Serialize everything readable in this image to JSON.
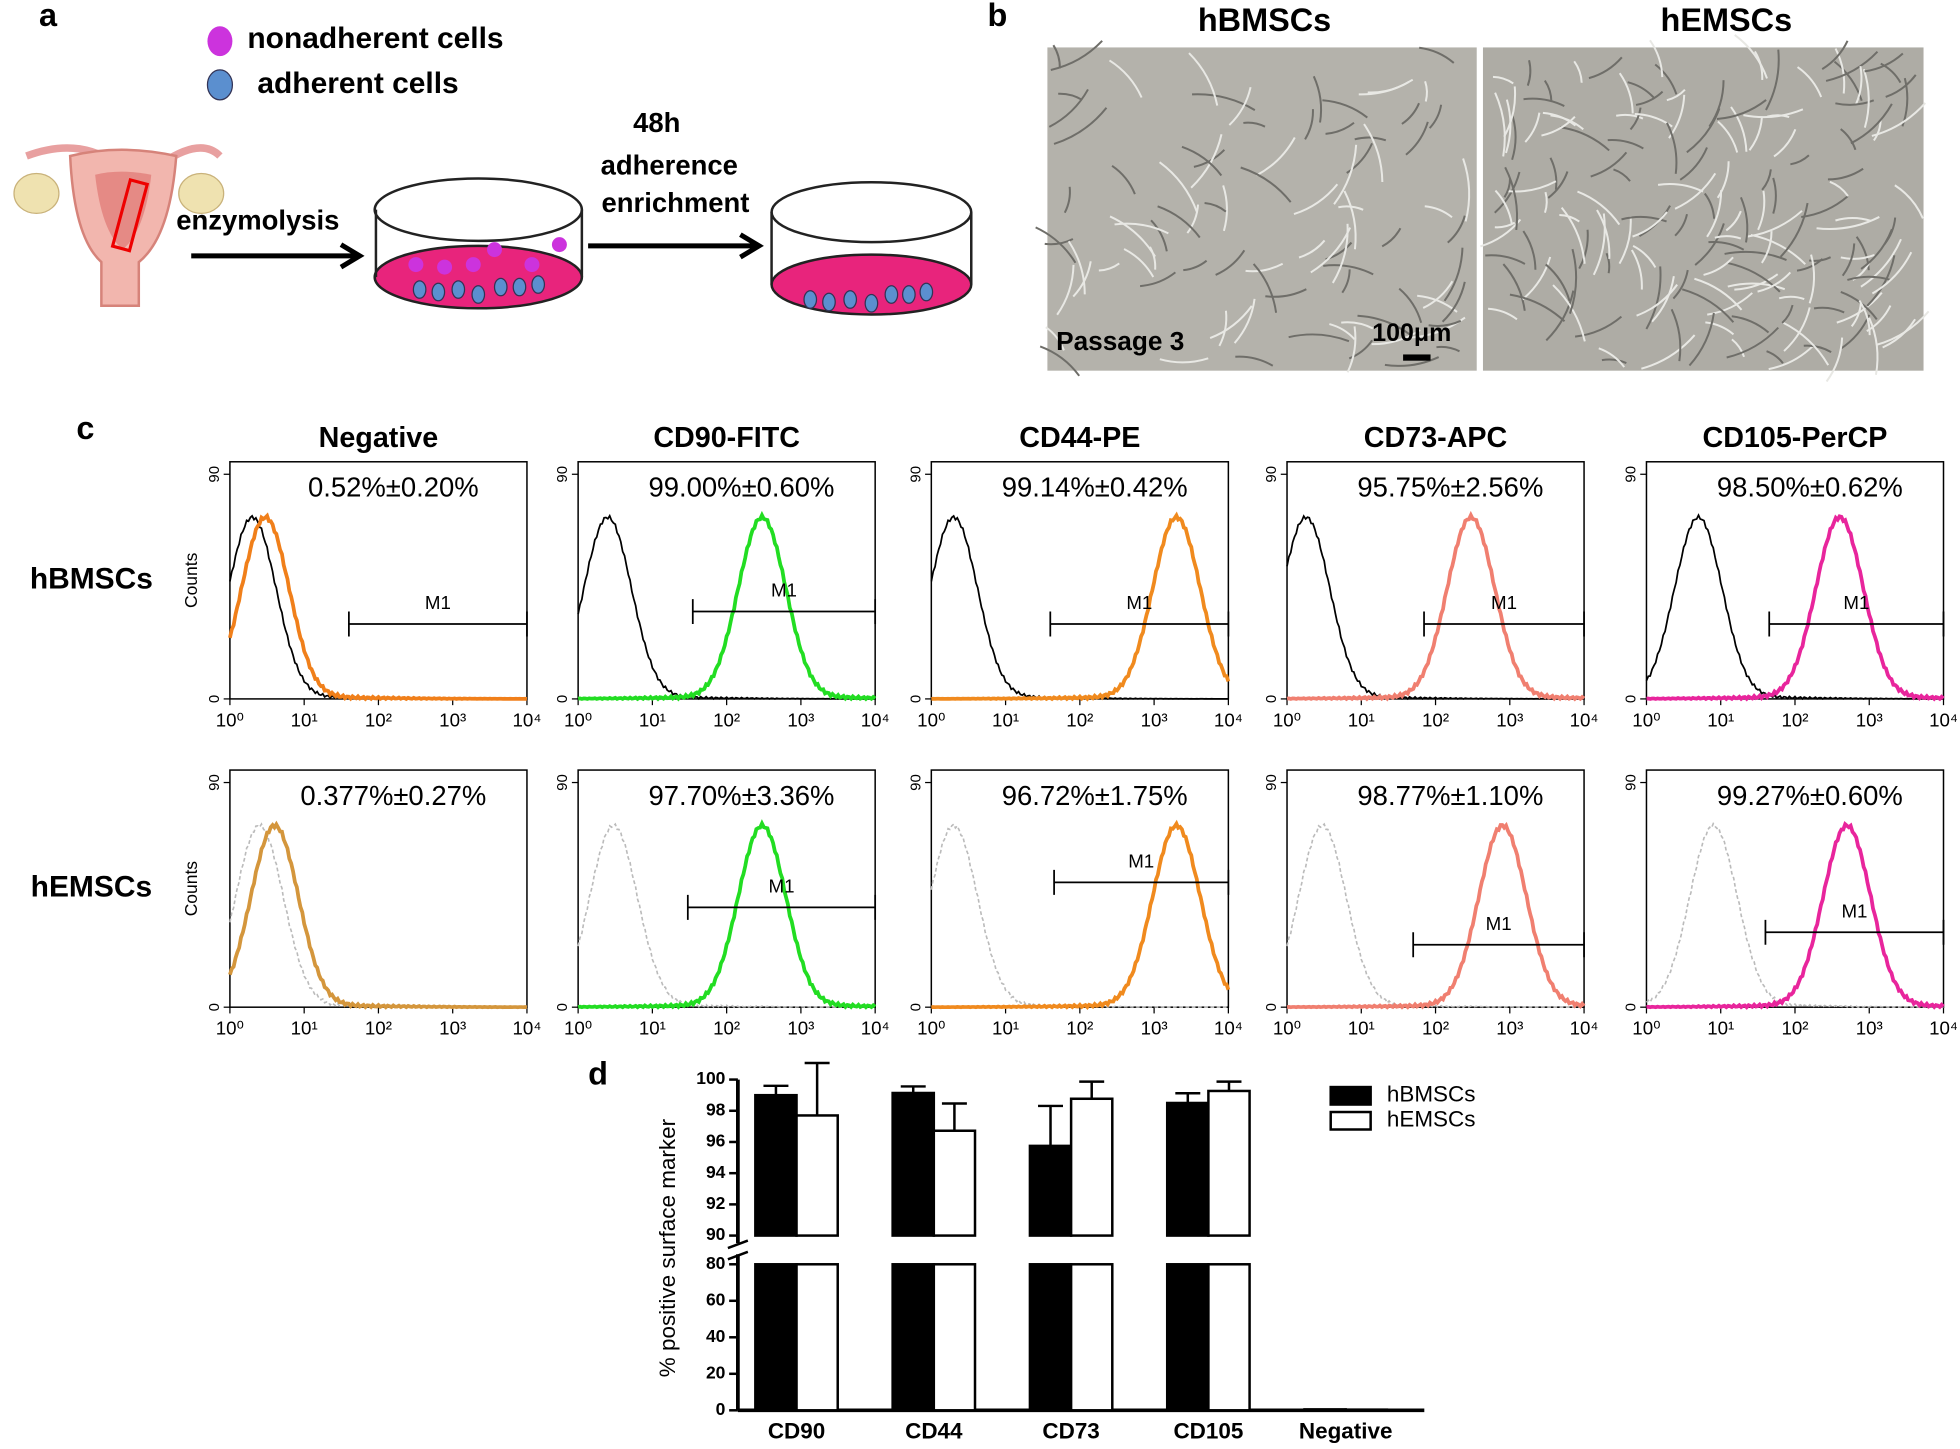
{
  "panel_a": {
    "label": "a",
    "legend": [
      "nonadherent cells",
      "adherent cells"
    ],
    "step1": "enzymolysis",
    "step2": [
      "48h",
      "adherence",
      "enrichment"
    ]
  },
  "panel_b": {
    "label": "b",
    "images": [
      {
        "title": "hBMSCs"
      },
      {
        "title": "hEMSCs"
      }
    ],
    "passage": "Passage 3",
    "scale_bar": "100μm"
  },
  "panel_c": {
    "label": "c",
    "xscale": "log",
    "xlim": [
      1,
      10000
    ],
    "xticks": [
      {
        "value": 1,
        "label": "10⁰"
      },
      {
        "value": 10,
        "label": "10¹"
      },
      {
        "value": 100,
        "label": "10²"
      },
      {
        "value": 1000,
        "label": "10³"
      },
      {
        "value": 10000,
        "label": "10⁴"
      }
    ],
    "ylim": [
      0,
      90
    ],
    "yticks": [
      0,
      90
    ],
    "ylabel": "Counts",
    "gate_label": "M1",
    "columns": [
      "Negative",
      "CD90-FITC",
      "CD44-PE",
      "CD73-APC",
      "CD105-PerCP"
    ],
    "rows": [
      {
        "name": "hBMSCs",
        "control_style": "solid",
        "panels": [
          {
            "stat": "0.52%±0.20%",
            "control_peak": 2,
            "sample_peak": 3,
            "color": "#f07f1a",
            "gate": [
              40,
              10000
            ],
            "gate_level": 30
          },
          {
            "stat": "99.00%±0.60%",
            "control_peak": 2.5,
            "sample_peak": 300,
            "color": "#22dd22",
            "gate": [
              35,
              10000
            ],
            "gate_level": 35
          },
          {
            "stat": "99.14%±0.42%",
            "control_peak": 2,
            "sample_peak": 2000,
            "color": "#f08a1e",
            "gate": [
              40,
              10000
            ],
            "gate_level": 30
          },
          {
            "stat": "95.75%±2.56%",
            "control_peak": 1.8,
            "sample_peak": 300,
            "color": "#f07f70",
            "gate": [
              70,
              10000
            ],
            "gate_level": 30
          },
          {
            "stat": "98.50%±0.62%",
            "control_peak": 5,
            "sample_peak": 400,
            "color": "#e8259c",
            "gate": [
              45,
              10000
            ],
            "gate_level": 30
          }
        ]
      },
      {
        "name": "hEMSCs",
        "control_style": "dashed",
        "panels": [
          {
            "stat": "0.377%±0.27%",
            "control_peak": 2.5,
            "sample_peak": 4,
            "color": "#d4963c"
          },
          {
            "stat": "97.70%±3.36%",
            "control_peak": 3,
            "sample_peak": 300,
            "color": "#22dd22",
            "gate": [
              30,
              10000
            ],
            "gate_level": 40
          },
          {
            "stat": "96.72%±1.75%",
            "control_peak": 2,
            "sample_peak": 2000,
            "color": "#f08a1e",
            "gate": [
              45,
              10000
            ],
            "gate_level": 50
          },
          {
            "stat": "98.77%±1.10%",
            "control_peak": 3,
            "sample_peak": 800,
            "color": "#f07f70",
            "gate": [
              50,
              10000
            ],
            "gate_level": 25
          },
          {
            "stat": "99.27%±0.60%",
            "control_peak": 8,
            "sample_peak": 500,
            "color": "#e8259c",
            "gate": [
              40,
              10000
            ],
            "gate_level": 30
          }
        ]
      }
    ]
  },
  "chart_data": {
    "type": "bar",
    "label": "d",
    "ylabel": "% positive surface marker",
    "categories": [
      "CD90",
      "CD44",
      "CD73",
      "CD105",
      "Negative"
    ],
    "series": [
      {
        "name": "hBMSCs",
        "color": "#000000",
        "values": [
          99.0,
          99.14,
          95.75,
          98.5,
          0.52
        ],
        "errors": [
          0.6,
          0.42,
          2.56,
          0.62,
          0.2
        ]
      },
      {
        "name": "hEMSCs",
        "color": "#ffffff",
        "values": [
          97.7,
          96.72,
          98.77,
          99.27,
          0.377
        ],
        "errors": [
          3.36,
          1.75,
          1.1,
          0.6,
          0.27
        ]
      }
    ],
    "ylim": [
      0,
      100
    ],
    "axis_break": [
      80,
      90
    ],
    "yticks": [
      0,
      20,
      40,
      60,
      80,
      90,
      92,
      94,
      96,
      98,
      100
    ],
    "legend": "upper right"
  }
}
